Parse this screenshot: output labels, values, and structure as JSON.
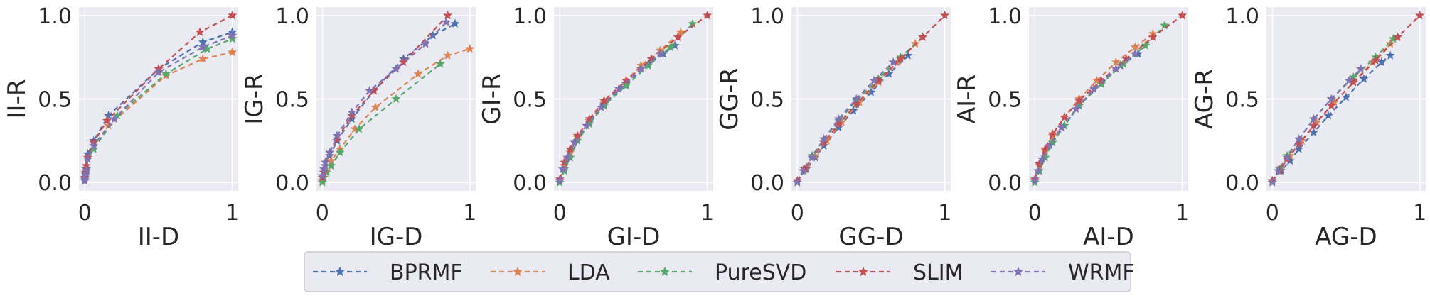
{
  "colors": {
    "panel_bg": "#eaeaf2",
    "grid": "#ffffff",
    "text": "#262626",
    "legend_bg": "#eaeaf2",
    "legend_border": "#cccccc"
  },
  "chart_data": [
    {
      "type": "line",
      "xlabel": "II-D",
      "ylabel": "II-R",
      "xlim": [
        -0.04,
        1.04
      ],
      "ylim": [
        -0.05,
        1.05
      ],
      "xticks": [
        "0",
        "1"
      ],
      "xtick_values": [
        0,
        1
      ],
      "yticks": [
        "0.0",
        "0.5",
        "1.0"
      ],
      "ytick_values": [
        0,
        0.5,
        1
      ],
      "grid": true,
      "marker": "star",
      "linestyle": "dashed",
      "series": [
        {
          "name": "BPRMF",
          "x": [
            0,
            0.005,
            0.01,
            0.02,
            0.06,
            0.16,
            0.5,
            0.8,
            1.0
          ],
          "y": [
            0.02,
            0.05,
            0.08,
            0.17,
            0.25,
            0.4,
            0.68,
            0.84,
            0.9
          ]
        },
        {
          "name": "LDA",
          "x": [
            0,
            0.005,
            0.01,
            0.02,
            0.06,
            0.16,
            0.55,
            0.8,
            1.0
          ],
          "y": [
            0.01,
            0.04,
            0.07,
            0.14,
            0.22,
            0.34,
            0.64,
            0.74,
            0.78
          ]
        },
        {
          "name": "PureSVD",
          "x": [
            0,
            0.005,
            0.01,
            0.02,
            0.06,
            0.22,
            0.55,
            0.83,
            1.0
          ],
          "y": [
            0.01,
            0.04,
            0.07,
            0.14,
            0.2,
            0.4,
            0.65,
            0.8,
            0.86
          ]
        },
        {
          "name": "SLIM",
          "x": [
            0,
            0.005,
            0.01,
            0.02,
            0.06,
            0.15,
            0.5,
            0.78,
            1.0
          ],
          "y": [
            0.03,
            0.06,
            0.1,
            0.15,
            0.24,
            0.37,
            0.68,
            0.9,
            1.0
          ]
        },
        {
          "name": "WRMF",
          "x": [
            0,
            0.005,
            0.01,
            0.02,
            0.06,
            0.2,
            0.5,
            0.8,
            1.0
          ],
          "y": [
            0.01,
            0.04,
            0.07,
            0.14,
            0.22,
            0.38,
            0.66,
            0.81,
            0.88
          ]
        }
      ]
    },
    {
      "type": "line",
      "xlabel": "IG-D",
      "ylabel": "IG-R",
      "xlim": [
        -0.04,
        1.04
      ],
      "ylim": [
        -0.05,
        1.05
      ],
      "xticks": [
        "0",
        "1"
      ],
      "xtick_values": [
        0,
        1
      ],
      "yticks": [
        "0.0",
        "0.5",
        "1.0"
      ],
      "ytick_values": [
        0,
        0.5,
        1
      ],
      "grid": true,
      "marker": "star",
      "linestyle": "dashed",
      "series": [
        {
          "name": "BPRMF",
          "x": [
            0,
            0.01,
            0.02,
            0.05,
            0.1,
            0.2,
            0.35,
            0.55,
            0.75,
            0.9
          ],
          "y": [
            0.01,
            0.06,
            0.1,
            0.16,
            0.25,
            0.38,
            0.55,
            0.74,
            0.88,
            0.95
          ]
        },
        {
          "name": "LDA",
          "x": [
            0,
            0.01,
            0.03,
            0.06,
            0.12,
            0.22,
            0.36,
            0.65,
            0.85,
            1.0
          ],
          "y": [
            0.01,
            0.03,
            0.07,
            0.13,
            0.2,
            0.32,
            0.45,
            0.65,
            0.76,
            0.8
          ]
        },
        {
          "name": "PureSVD",
          "x": [
            0,
            0.01,
            0.03,
            0.06,
            0.12,
            0.25,
            0.5,
            0.8
          ],
          "y": [
            0.0,
            0.03,
            0.06,
            0.1,
            0.18,
            0.32,
            0.5,
            0.71
          ]
        },
        {
          "name": "SLIM",
          "x": [
            0,
            0.01,
            0.02,
            0.05,
            0.1,
            0.2,
            0.35,
            0.55,
            0.85
          ],
          "y": [
            0.03,
            0.06,
            0.12,
            0.18,
            0.26,
            0.4,
            0.55,
            0.72,
            1.0
          ]
        },
        {
          "name": "WRMF",
          "x": [
            0,
            0.01,
            0.02,
            0.05,
            0.1,
            0.2,
            0.32,
            0.5,
            0.7,
            0.84
          ],
          "y": [
            0.04,
            0.08,
            0.12,
            0.18,
            0.28,
            0.42,
            0.55,
            0.68,
            0.83,
            0.96
          ]
        }
      ]
    },
    {
      "type": "line",
      "xlabel": "GI-D",
      "ylabel": "GI-R",
      "xlim": [
        -0.04,
        1.04
      ],
      "ylim": [
        -0.05,
        1.05
      ],
      "xticks": [
        "0",
        "1"
      ],
      "xtick_values": [
        0,
        1
      ],
      "yticks": [
        "0.0",
        "0.5",
        "1.0"
      ],
      "ytick_values": [
        0,
        0.5,
        1
      ],
      "grid": true,
      "marker": "star",
      "linestyle": "dashed",
      "series": [
        {
          "name": "BPRMF",
          "x": [
            0,
            0.03,
            0.07,
            0.12,
            0.2,
            0.3,
            0.45,
            0.6,
            0.7,
            0.78
          ],
          "y": [
            0.01,
            0.08,
            0.15,
            0.25,
            0.36,
            0.47,
            0.59,
            0.71,
            0.77,
            0.82
          ]
        },
        {
          "name": "LDA",
          "x": [
            0,
            0.03,
            0.07,
            0.12,
            0.2,
            0.3,
            0.45,
            0.55,
            0.68,
            0.82
          ],
          "y": [
            0.01,
            0.1,
            0.18,
            0.27,
            0.37,
            0.48,
            0.61,
            0.7,
            0.79,
            0.9
          ]
        },
        {
          "name": "PureSVD",
          "x": [
            0,
            0.03,
            0.07,
            0.12,
            0.2,
            0.3,
            0.45,
            0.6,
            0.75,
            0.9
          ],
          "y": [
            0.0,
            0.07,
            0.15,
            0.25,
            0.35,
            0.46,
            0.58,
            0.7,
            0.81,
            0.95
          ]
        },
        {
          "name": "SLIM",
          "x": [
            0,
            0.03,
            0.07,
            0.12,
            0.2,
            0.3,
            0.45,
            0.62,
            0.8,
            1.0
          ],
          "y": [
            0.02,
            0.12,
            0.2,
            0.28,
            0.38,
            0.49,
            0.61,
            0.74,
            0.87,
            1.0
          ]
        },
        {
          "name": "WRMF",
          "x": [
            0,
            0.02,
            0.05,
            0.1,
            0.18,
            0.28,
            0.4,
            0.55,
            0.68
          ],
          "y": [
            0.01,
            0.08,
            0.15,
            0.24,
            0.34,
            0.45,
            0.56,
            0.68,
            0.77
          ]
        }
      ]
    },
    {
      "type": "line",
      "xlabel": "GG-D",
      "ylabel": "GG-R",
      "xlim": [
        -0.04,
        1.04
      ],
      "ylim": [
        -0.05,
        1.05
      ],
      "xticks": [
        "0",
        "1"
      ],
      "xtick_values": [
        0,
        1
      ],
      "yticks": [
        "0.0",
        "0.5",
        "1.0"
      ],
      "ytick_values": [
        0,
        0.5,
        1
      ],
      "grid": true,
      "marker": "star",
      "linestyle": "dashed",
      "series": [
        {
          "name": "BPRMF",
          "x": [
            0,
            0.06,
            0.12,
            0.18,
            0.28,
            0.38,
            0.5,
            0.62,
            0.75
          ],
          "y": [
            0.01,
            0.08,
            0.15,
            0.22,
            0.33,
            0.43,
            0.54,
            0.65,
            0.76
          ]
        },
        {
          "name": "LDA",
          "x": [
            0,
            0.06,
            0.12,
            0.2,
            0.3,
            0.42,
            0.55,
            0.68,
            0.8
          ],
          "y": [
            0.01,
            0.09,
            0.16,
            0.25,
            0.36,
            0.48,
            0.6,
            0.72,
            0.83
          ]
        },
        {
          "name": "PureSVD",
          "x": [
            0,
            0.05,
            0.1,
            0.18,
            0.28,
            0.4,
            0.55,
            0.7,
            0.85
          ],
          "y": [
            0.0,
            0.08,
            0.16,
            0.26,
            0.37,
            0.49,
            0.62,
            0.75,
            0.87
          ]
        },
        {
          "name": "SLIM",
          "x": [
            0,
            0.05,
            0.1,
            0.18,
            0.28,
            0.4,
            0.55,
            0.7,
            0.85,
            1.0
          ],
          "y": [
            0.01,
            0.08,
            0.15,
            0.24,
            0.35,
            0.47,
            0.61,
            0.74,
            0.87,
            1.0
          ]
        },
        {
          "name": "WRMF",
          "x": [
            0,
            0.04,
            0.1,
            0.18,
            0.28,
            0.4,
            0.52,
            0.65
          ],
          "y": [
            0.0,
            0.07,
            0.15,
            0.26,
            0.38,
            0.5,
            0.61,
            0.72
          ]
        }
      ]
    },
    {
      "type": "line",
      "xlabel": "AI-D",
      "ylabel": "AI-R",
      "xlim": [
        -0.04,
        1.04
      ],
      "ylim": [
        -0.05,
        1.05
      ],
      "xticks": [
        "0",
        "1"
      ],
      "xtick_values": [
        0,
        1
      ],
      "yticks": [
        "0.0",
        "0.5",
        "1.0"
      ],
      "ytick_values": [
        0,
        0.5,
        1
      ],
      "grid": true,
      "marker": "star",
      "linestyle": "dashed",
      "series": [
        {
          "name": "BPRMF",
          "x": [
            0,
            0.03,
            0.07,
            0.12,
            0.2,
            0.3,
            0.45,
            0.58,
            0.7
          ],
          "y": [
            0.01,
            0.07,
            0.15,
            0.24,
            0.34,
            0.46,
            0.59,
            0.7,
            0.77
          ]
        },
        {
          "name": "LDA",
          "x": [
            0,
            0.03,
            0.07,
            0.12,
            0.2,
            0.3,
            0.42,
            0.55,
            0.68,
            0.8
          ],
          "y": [
            0.01,
            0.1,
            0.19,
            0.28,
            0.39,
            0.5,
            0.61,
            0.72,
            0.81,
            0.89
          ]
        },
        {
          "name": "PureSVD",
          "x": [
            0,
            0.03,
            0.07,
            0.12,
            0.2,
            0.3,
            0.45,
            0.6,
            0.75,
            0.88
          ],
          "y": [
            0.0,
            0.07,
            0.15,
            0.24,
            0.34,
            0.46,
            0.59,
            0.71,
            0.82,
            0.94
          ]
        },
        {
          "name": "SLIM",
          "x": [
            0,
            0.03,
            0.07,
            0.12,
            0.2,
            0.3,
            0.45,
            0.62,
            0.8,
            1.0
          ],
          "y": [
            0.02,
            0.11,
            0.2,
            0.29,
            0.39,
            0.49,
            0.61,
            0.74,
            0.87,
            1.0
          ]
        },
        {
          "name": "WRMF",
          "x": [
            0,
            0.02,
            0.05,
            0.1,
            0.18,
            0.28,
            0.4,
            0.55,
            0.68
          ],
          "y": [
            0.01,
            0.07,
            0.14,
            0.22,
            0.33,
            0.44,
            0.56,
            0.68,
            0.77
          ]
        }
      ]
    },
    {
      "type": "line",
      "xlabel": "AG-D",
      "ylabel": "AG-R",
      "xlim": [
        -0.04,
        1.04
      ],
      "ylim": [
        -0.05,
        1.05
      ],
      "xticks": [
        "0",
        "1"
      ],
      "xtick_values": [
        0,
        1
      ],
      "yticks": [
        "0.0",
        "0.5",
        "1.0"
      ],
      "ytick_values": [
        0,
        0.5,
        1
      ],
      "grid": true,
      "marker": "star",
      "linestyle": "dashed",
      "series": [
        {
          "name": "BPRMF",
          "x": [
            0,
            0.06,
            0.12,
            0.18,
            0.28,
            0.38,
            0.5,
            0.62,
            0.74,
            0.8
          ],
          "y": [
            0.01,
            0.07,
            0.13,
            0.2,
            0.3,
            0.4,
            0.51,
            0.62,
            0.72,
            0.76
          ]
        },
        {
          "name": "LDA",
          "x": [
            0,
            0.06,
            0.12,
            0.2,
            0.3,
            0.42,
            0.55,
            0.68,
            0.8
          ],
          "y": [
            0.01,
            0.09,
            0.16,
            0.25,
            0.36,
            0.48,
            0.6,
            0.72,
            0.83
          ]
        },
        {
          "name": "PureSVD",
          "x": [
            0,
            0.05,
            0.1,
            0.18,
            0.28,
            0.4,
            0.55,
            0.7,
            0.82
          ],
          "y": [
            0.0,
            0.08,
            0.16,
            0.26,
            0.38,
            0.5,
            0.63,
            0.75,
            0.86
          ]
        },
        {
          "name": "SLIM",
          "x": [
            0,
            0.05,
            0.1,
            0.18,
            0.28,
            0.4,
            0.55,
            0.7,
            0.85,
            1.0
          ],
          "y": [
            0.01,
            0.07,
            0.14,
            0.23,
            0.34,
            0.46,
            0.6,
            0.73,
            0.87,
            1.0
          ]
        },
        {
          "name": "WRMF",
          "x": [
            0,
            0.04,
            0.1,
            0.18,
            0.28,
            0.4,
            0.52,
            0.6
          ],
          "y": [
            0.0,
            0.07,
            0.15,
            0.26,
            0.38,
            0.5,
            0.61,
            0.68
          ]
        }
      ]
    }
  ],
  "legend": {
    "placement": "bottom-center",
    "entries": [
      {
        "name": "BPRMF",
        "color": "#4c72b0"
      },
      {
        "name": "LDA",
        "color": "#dd8452"
      },
      {
        "name": "PureSVD",
        "color": "#55a868"
      },
      {
        "name": "SLIM",
        "color": "#c44e52"
      },
      {
        "name": "WRMF",
        "color": "#8172b3"
      }
    ]
  }
}
